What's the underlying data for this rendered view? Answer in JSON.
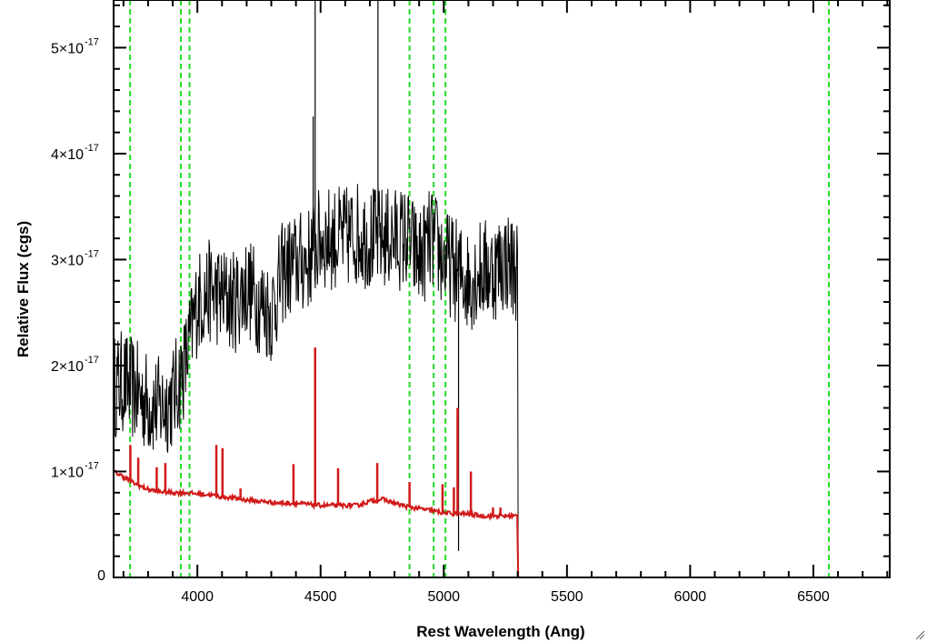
{
  "chart_data": {
    "type": "line",
    "xlabel": "Rest Wavelength (Ang)",
    "ylabel": "Relative Flux (cgs)",
    "xlim": [
      3660,
      6810
    ],
    "ylim": [
      0,
      5.45e-17
    ],
    "x_ticks": [
      {
        "value": 4000,
        "label": "4000"
      },
      {
        "value": 4500,
        "label": "4500"
      },
      {
        "value": 5000,
        "label": "5000"
      },
      {
        "value": 5500,
        "label": "5500"
      },
      {
        "value": 6000,
        "label": "6000"
      },
      {
        "value": 6500,
        "label": "6500"
      }
    ],
    "y_ticks": [
      {
        "value": 0,
        "mantissa": "0",
        "exponent": ""
      },
      {
        "value": 1e-17,
        "mantissa": "1×10",
        "exponent": "-17"
      },
      {
        "value": 2e-17,
        "mantissa": "2×10",
        "exponent": "-17"
      },
      {
        "value": 3e-17,
        "mantissa": "3×10",
        "exponent": "-17"
      },
      {
        "value": 4e-17,
        "mantissa": "4×10",
        "exponent": "-17"
      },
      {
        "value": 5e-17,
        "mantissa": "5×10",
        "exponent": "-17"
      }
    ],
    "minor_x_step": 100,
    "minor_y_step": 2e-18,
    "vlines": [
      3727,
      3933,
      3968,
      4861,
      4959,
      5007,
      6563
    ],
    "series": [
      {
        "color": "#000000",
        "style": "noisy-spectrum",
        "x": [
          3660,
          3700,
          3750,
          3800,
          3850,
          3900,
          3950,
          4000,
          4050,
          4100,
          4150,
          4200,
          4250,
          4300,
          4350,
          4400,
          4450,
          4500,
          4550,
          4600,
          4650,
          4700,
          4750,
          4800,
          4850,
          4900,
          4950,
          5000,
          5050,
          5100,
          5150,
          5200,
          5250,
          5300,
          5302,
          6810
        ],
        "y": [
          1.8e-17,
          1.85e-17,
          1.75e-17,
          1.65e-17,
          1.6e-17,
          1.7e-17,
          2e-17,
          2.6e-17,
          2.7e-17,
          2.65e-17,
          2.6e-17,
          2.75e-17,
          2.6e-17,
          2.5e-17,
          2.9e-17,
          2.95e-17,
          3e-17,
          3.2e-17,
          3.2e-17,
          3.2e-17,
          3.25e-17,
          3.2e-17,
          3.2e-17,
          3.2e-17,
          3.2e-17,
          3e-17,
          3.2e-17,
          3e-17,
          2.9e-17,
          2.8e-17,
          2.9e-17,
          2.9e-17,
          3e-17,
          2.9e-17,
          0,
          0
        ],
        "noise": 5e-18,
        "spikes": [
          {
            "x": 4478,
            "y": 5.5e-17
          },
          {
            "x": 4733,
            "y": 5.5e-17
          },
          {
            "x": 4470,
            "y": 4.35e-17
          },
          {
            "x": 5060,
            "y": 2.5e-18
          }
        ]
      },
      {
        "color": "#d11a1a",
        "style": "model",
        "x": [
          3660,
          3700,
          3750,
          3800,
          3850,
          3900,
          3950,
          4000,
          4050,
          4100,
          4150,
          4200,
          4250,
          4300,
          4350,
          4400,
          4450,
          4500,
          4550,
          4600,
          4650,
          4700,
          4750,
          4800,
          4850,
          4900,
          4950,
          5000,
          5050,
          5100,
          5150,
          5200,
          5250,
          5300,
          5302,
          6810
        ],
        "y": [
          1e-17,
          9.5e-18,
          8.8e-18,
          8.3e-18,
          8.1e-18,
          8e-18,
          8e-18,
          7.9e-18,
          7.8e-18,
          7.6e-18,
          7.5e-18,
          7.3e-18,
          7.2e-18,
          7.1e-18,
          7e-18,
          7e-18,
          6.9e-18,
          6.8e-18,
          6.8e-18,
          6.8e-18,
          6.8e-18,
          7.2e-18,
          7.4e-18,
          7e-18,
          6.7e-18,
          6.5e-18,
          6.3e-18,
          6.1e-18,
          6e-18,
          6e-18,
          5.8e-18,
          5.8e-18,
          5.8e-18,
          5.8e-18,
          0,
          0
        ],
        "lines": [
          {
            "x": 3728,
            "y": 1.25e-17
          },
          {
            "x": 3760,
            "y": 1.13e-17
          },
          {
            "x": 3835,
            "y": 1.04e-17
          },
          {
            "x": 3870,
            "y": 1.08e-17
          },
          {
            "x": 4077,
            "y": 1.25e-17
          },
          {
            "x": 4102,
            "y": 1.22e-17
          },
          {
            "x": 4175,
            "y": 8.4e-18
          },
          {
            "x": 4390,
            "y": 1.07e-17
          },
          {
            "x": 4478,
            "y": 2.17e-17
          },
          {
            "x": 4571,
            "y": 1.03e-17
          },
          {
            "x": 4730,
            "y": 1.08e-17
          },
          {
            "x": 4861,
            "y": 9e-18
          },
          {
            "x": 4995,
            "y": 8.8e-18
          },
          {
            "x": 5041,
            "y": 8.5e-18
          },
          {
            "x": 5056,
            "y": 1.6e-17
          },
          {
            "x": 5110,
            "y": 1e-17
          },
          {
            "x": 5200,
            "y": 6.6e-18
          },
          {
            "x": 5230,
            "y": 6.6e-18
          }
        ]
      }
    ]
  }
}
